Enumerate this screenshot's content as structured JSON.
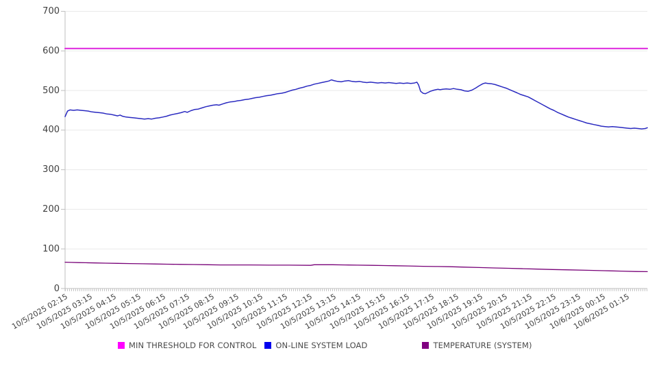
{
  "chart_data": {
    "type": "line",
    "title": "",
    "grid": true,
    "legend_position": "bottom",
    "y_axis": {
      "min": 0,
      "max": 700,
      "step": 100,
      "tick_labels": [
        "0",
        "100",
        "200",
        "300",
        "400",
        "500",
        "600",
        "700"
      ]
    },
    "x_axis": {
      "start_hour": 2.25,
      "end_hour": 26.08,
      "label_interval_hours": 1,
      "rotation_deg": -30,
      "labels": [
        "10/5/2025 02:15",
        "10/5/2025 03:15",
        "10/5/2025 04:15",
        "10/5/2025 05:15",
        "10/5/2025 06:15",
        "10/5/2025 07:15",
        "10/5/2025 08:15",
        "10/5/2025 09:15",
        "10/5/2025 10:15",
        "10/5/2025 11:15",
        "10/5/2025 12:15",
        "10/5/2025 13:15",
        "10/5/2025 14:15",
        "10/5/2025 15:15",
        "10/5/2025 16:15",
        "10/5/2025 17:15",
        "10/5/2025 18:15",
        "10/5/2025 19:15",
        "10/5/2025 20:15",
        "10/5/2025 21:15",
        "10/5/2025 22:15",
        "10/5/2025 23:15",
        "10/6/2025 00:15",
        "10/6/2025 01:15"
      ]
    },
    "colors": {
      "grid": "#e9e9e9",
      "axis": "#bfbfbf",
      "tick": "#c6c6c6",
      "label_text": "#3f3f3f"
    },
    "series": [
      {
        "name": "MIN THRESHOLD FOR CONTROL",
        "color": "#dd22dd",
        "legend_color": "#ff00ff",
        "stroke_width": 2,
        "points": [
          [
            2.25,
            606
          ],
          [
            26.08,
            606
          ]
        ]
      },
      {
        "name": "ON-LINE SYSTEM LOAD",
        "color": "#2929c0",
        "legend_color": "#0000ee",
        "stroke_width": 1.5,
        "points": [
          [
            2.25,
            434
          ],
          [
            2.35,
            448
          ],
          [
            2.45,
            451
          ],
          [
            2.6,
            450
          ],
          [
            2.75,
            451
          ],
          [
            2.9,
            450
          ],
          [
            3.05,
            449
          ],
          [
            3.2,
            448
          ],
          [
            3.35,
            446
          ],
          [
            3.5,
            445
          ],
          [
            3.65,
            444
          ],
          [
            3.8,
            443
          ],
          [
            3.95,
            441
          ],
          [
            4.1,
            440
          ],
          [
            4.25,
            438
          ],
          [
            4.4,
            436
          ],
          [
            4.5,
            438
          ],
          [
            4.6,
            435
          ],
          [
            4.75,
            433
          ],
          [
            4.9,
            432
          ],
          [
            5.05,
            431
          ],
          [
            5.2,
            430
          ],
          [
            5.35,
            429
          ],
          [
            5.5,
            428
          ],
          [
            5.65,
            429
          ],
          [
            5.8,
            428
          ],
          [
            5.95,
            430
          ],
          [
            6.1,
            431
          ],
          [
            6.25,
            433
          ],
          [
            6.4,
            435
          ],
          [
            6.55,
            438
          ],
          [
            6.7,
            440
          ],
          [
            6.85,
            442
          ],
          [
            7.0,
            444
          ],
          [
            7.15,
            447
          ],
          [
            7.25,
            445
          ],
          [
            7.4,
            449
          ],
          [
            7.55,
            452
          ],
          [
            7.7,
            453
          ],
          [
            7.85,
            456
          ],
          [
            8.0,
            459
          ],
          [
            8.15,
            461
          ],
          [
            8.3,
            463
          ],
          [
            8.45,
            464
          ],
          [
            8.55,
            463
          ],
          [
            8.7,
            466
          ],
          [
            8.85,
            469
          ],
          [
            9.0,
            471
          ],
          [
            9.15,
            472
          ],
          [
            9.3,
            474
          ],
          [
            9.45,
            475
          ],
          [
            9.6,
            477
          ],
          [
            9.75,
            478
          ],
          [
            9.9,
            480
          ],
          [
            10.05,
            482
          ],
          [
            10.2,
            483
          ],
          [
            10.35,
            485
          ],
          [
            10.5,
            487
          ],
          [
            10.65,
            488
          ],
          [
            10.8,
            490
          ],
          [
            10.95,
            492
          ],
          [
            11.1,
            493
          ],
          [
            11.25,
            495
          ],
          [
            11.4,
            498
          ],
          [
            11.55,
            501
          ],
          [
            11.7,
            503
          ],
          [
            11.85,
            506
          ],
          [
            12.0,
            508
          ],
          [
            12.15,
            511
          ],
          [
            12.3,
            513
          ],
          [
            12.45,
            516
          ],
          [
            12.6,
            518
          ],
          [
            12.75,
            520
          ],
          [
            12.9,
            522
          ],
          [
            13.05,
            524
          ],
          [
            13.15,
            527
          ],
          [
            13.25,
            525
          ],
          [
            13.4,
            523
          ],
          [
            13.55,
            522
          ],
          [
            13.7,
            524
          ],
          [
            13.85,
            525
          ],
          [
            14.0,
            523
          ],
          [
            14.15,
            522
          ],
          [
            14.3,
            523
          ],
          [
            14.45,
            521
          ],
          [
            14.6,
            520
          ],
          [
            14.75,
            521
          ],
          [
            14.9,
            520
          ],
          [
            15.05,
            519
          ],
          [
            15.2,
            520
          ],
          [
            15.35,
            519
          ],
          [
            15.5,
            520
          ],
          [
            15.65,
            519
          ],
          [
            15.8,
            518
          ],
          [
            15.95,
            519
          ],
          [
            16.1,
            518
          ],
          [
            16.25,
            519
          ],
          [
            16.4,
            518
          ],
          [
            16.55,
            519
          ],
          [
            16.65,
            521
          ],
          [
            16.72,
            514
          ],
          [
            16.8,
            498
          ],
          [
            16.9,
            493
          ],
          [
            17.0,
            492
          ],
          [
            17.1,
            495
          ],
          [
            17.2,
            498
          ],
          [
            17.35,
            501
          ],
          [
            17.5,
            503
          ],
          [
            17.6,
            502
          ],
          [
            17.7,
            503
          ],
          [
            17.85,
            504
          ],
          [
            18.0,
            503
          ],
          [
            18.15,
            505
          ],
          [
            18.3,
            503
          ],
          [
            18.45,
            502
          ],
          [
            18.6,
            499
          ],
          [
            18.75,
            498
          ],
          [
            18.9,
            501
          ],
          [
            19.05,
            506
          ],
          [
            19.2,
            512
          ],
          [
            19.35,
            517
          ],
          [
            19.45,
            519
          ],
          [
            19.55,
            518
          ],
          [
            19.7,
            517
          ],
          [
            19.85,
            515
          ],
          [
            20.0,
            512
          ],
          [
            20.15,
            509
          ],
          [
            20.3,
            506
          ],
          [
            20.45,
            502
          ],
          [
            20.6,
            498
          ],
          [
            20.75,
            494
          ],
          [
            20.9,
            490
          ],
          [
            21.05,
            487
          ],
          [
            21.2,
            484
          ],
          [
            21.35,
            479
          ],
          [
            21.5,
            474
          ],
          [
            21.65,
            469
          ],
          [
            21.8,
            464
          ],
          [
            21.95,
            459
          ],
          [
            22.1,
            454
          ],
          [
            22.25,
            450
          ],
          [
            22.4,
            445
          ],
          [
            22.55,
            441
          ],
          [
            22.7,
            437
          ],
          [
            22.85,
            433
          ],
          [
            23.0,
            430
          ],
          [
            23.15,
            427
          ],
          [
            23.3,
            424
          ],
          [
            23.45,
            421
          ],
          [
            23.6,
            418
          ],
          [
            23.75,
            416
          ],
          [
            23.9,
            414
          ],
          [
            24.05,
            412
          ],
          [
            24.2,
            410
          ],
          [
            24.35,
            409
          ],
          [
            24.5,
            408
          ],
          [
            24.65,
            409
          ],
          [
            24.8,
            408
          ],
          [
            24.95,
            407
          ],
          [
            25.1,
            406
          ],
          [
            25.25,
            405
          ],
          [
            25.4,
            404
          ],
          [
            25.55,
            405
          ],
          [
            25.7,
            404
          ],
          [
            25.85,
            403
          ],
          [
            26.0,
            404
          ],
          [
            26.08,
            406
          ]
        ]
      },
      {
        "name": "TEMPERATURE (SYSTEM)",
        "color": "#770077",
        "legend_color": "#800080",
        "stroke_width": 1.3,
        "points": [
          [
            2.25,
            66.5
          ],
          [
            2.5,
            66
          ],
          [
            2.8,
            65.5
          ],
          [
            3.1,
            65
          ],
          [
            3.5,
            64.5
          ],
          [
            3.9,
            64
          ],
          [
            4.4,
            63.5
          ],
          [
            4.9,
            63
          ],
          [
            5.4,
            62.5
          ],
          [
            5.9,
            62
          ],
          [
            6.4,
            61.5
          ],
          [
            7.0,
            61
          ],
          [
            7.5,
            60.5
          ],
          [
            8.1,
            60
          ],
          [
            8.6,
            59.5
          ],
          [
            9.8,
            59.5
          ],
          [
            10.6,
            59
          ],
          [
            11.4,
            59
          ],
          [
            12.3,
            58.5
          ],
          [
            12.45,
            60
          ],
          [
            13.2,
            60
          ],
          [
            13.7,
            59.5
          ],
          [
            14.2,
            59
          ],
          [
            14.8,
            58.5
          ],
          [
            15.3,
            58
          ],
          [
            15.8,
            57.5
          ],
          [
            16.3,
            57
          ],
          [
            16.9,
            56
          ],
          [
            17.5,
            55.5
          ],
          [
            18.0,
            55
          ],
          [
            18.6,
            54
          ],
          [
            19.2,
            53
          ],
          [
            19.8,
            52
          ],
          [
            20.4,
            51
          ],
          [
            21.0,
            50
          ],
          [
            21.6,
            49
          ],
          [
            22.2,
            48
          ],
          [
            22.9,
            47
          ],
          [
            23.6,
            46
          ],
          [
            24.3,
            45
          ],
          [
            25.0,
            44
          ],
          [
            25.6,
            43
          ],
          [
            26.08,
            42.5
          ]
        ]
      }
    ]
  }
}
